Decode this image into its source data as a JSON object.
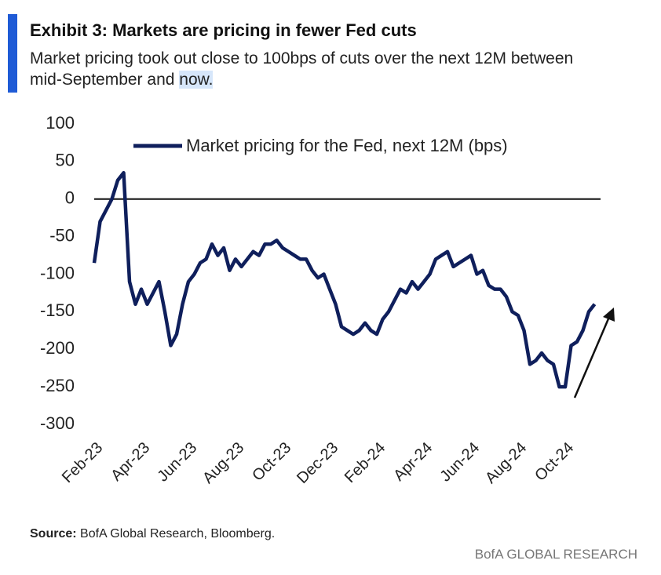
{
  "header": {
    "title": "Exhibit 3: Markets are pricing in fewer Fed cuts",
    "subtitle_lines": [
      "Market pricing took out close to 100bps of cuts over the next 12M between",
      "mid-September and"
    ],
    "subtitle_highlight": "now."
  },
  "chart_data": {
    "type": "line",
    "x": [
      "Feb-23",
      null,
      null,
      null,
      null,
      null,
      null,
      null,
      "Apr-23",
      null,
      null,
      null,
      null,
      null,
      null,
      null,
      "Jun-23",
      null,
      null,
      null,
      null,
      null,
      null,
      null,
      "Aug-23",
      null,
      null,
      null,
      null,
      null,
      null,
      null,
      "Oct-23",
      null,
      null,
      null,
      null,
      null,
      null,
      null,
      "Dec-23",
      null,
      null,
      null,
      null,
      null,
      null,
      null,
      "Feb-24",
      null,
      null,
      null,
      null,
      null,
      null,
      null,
      "Apr-24",
      null,
      null,
      null,
      null,
      null,
      null,
      null,
      "Jun-24",
      null,
      null,
      null,
      null,
      null,
      null,
      null,
      "Aug-24",
      null,
      null,
      null,
      null,
      null,
      null,
      null,
      "Oct-24",
      null,
      null,
      null,
      null,
      null
    ],
    "series": [
      {
        "name": "Market pricing for the Fed, next 12M (bps)",
        "color": "#0f1f5c",
        "values": [
          -85,
          -30,
          -15,
          0,
          25,
          35,
          -110,
          -140,
          -120,
          -140,
          -125,
          -110,
          -150,
          -195,
          -180,
          -140,
          -110,
          -100,
          -85,
          -80,
          -60,
          -75,
          -65,
          -95,
          -80,
          -90,
          -80,
          -70,
          -75,
          -60,
          -60,
          -55,
          -65,
          -70,
          -75,
          -80,
          -80,
          -95,
          -105,
          -100,
          -120,
          -140,
          -170,
          -175,
          -180,
          -175,
          -165,
          -175,
          -180,
          -160,
          -150,
          -135,
          -120,
          -125,
          -110,
          -120,
          -110,
          -100,
          -80,
          -75,
          -70,
          -90,
          -85,
          -80,
          -75,
          -100,
          -95,
          -115,
          -120,
          -120,
          -130,
          -150,
          -155,
          -175,
          -220,
          -215,
          -205,
          -215,
          -220,
          -250,
          -250,
          -195,
          -190,
          -175,
          -150,
          -140
        ]
      }
    ],
    "ylim": [
      -300,
      100
    ],
    "yticks": [
      100,
      50,
      0,
      -50,
      -100,
      -150,
      -200,
      -250,
      -300
    ]
  },
  "footer": {
    "source_label": "Source:",
    "source": "BofA Global Research, Bloomberg.",
    "brand": "BofA GLOBAL RESEARCH"
  }
}
